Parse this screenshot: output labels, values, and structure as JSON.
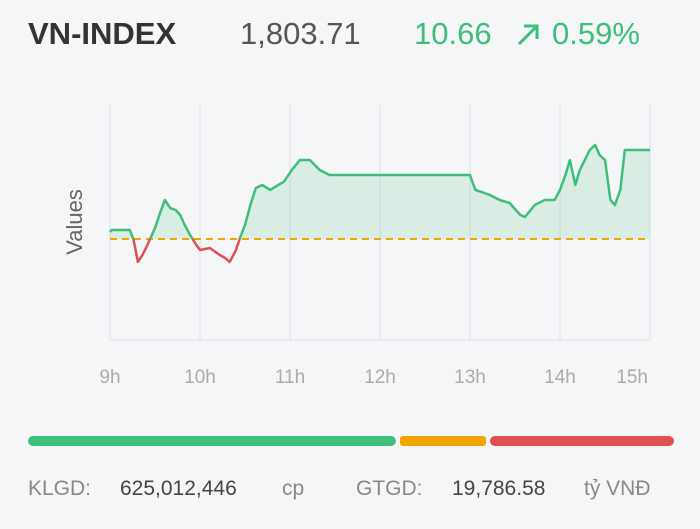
{
  "header": {
    "title": "VN-INDEX",
    "price": "1,803.71",
    "change": "10.66",
    "change_pct": "0.59%"
  },
  "chart_data": {
    "type": "line",
    "y_label": "Values",
    "x": [
      9.0,
      9.02,
      9.22,
      9.26,
      9.31,
      9.36,
      9.4,
      9.44,
      9.5,
      9.56,
      9.61,
      9.67,
      9.73,
      9.78,
      9.83,
      9.89,
      9.96,
      10.0,
      10.11,
      10.22,
      10.28,
      10.33,
      10.4,
      10.44,
      10.5,
      10.56,
      10.62,
      10.69,
      10.78,
      10.87,
      10.93,
      11.02,
      11.11,
      11.22,
      11.33,
      11.44,
      13.0,
      13.06,
      13.22,
      13.33,
      13.44,
      13.56,
      13.61,
      13.72,
      13.83,
      13.94,
      14.0,
      14.06,
      14.11,
      14.17,
      14.22,
      14.33,
      14.39,
      14.44,
      14.5,
      14.56,
      14.61,
      14.67,
      14.72,
      15.0
    ],
    "values": [
      1793.89,
      1794.13,
      1794.13,
      1793.05,
      1790.3,
      1791.13,
      1791.97,
      1792.93,
      1794.37,
      1796.28,
      1797.72,
      1796.76,
      1796.52,
      1795.92,
      1794.73,
      1793.53,
      1792.33,
      1791.73,
      1791.97,
      1791.13,
      1790.77,
      1790.3,
      1791.73,
      1793.05,
      1794.73,
      1797.12,
      1799.16,
      1799.52,
      1798.92,
      1799.52,
      1799.88,
      1801.31,
      1802.51,
      1802.51,
      1801.31,
      1800.71,
      1800.71,
      1798.92,
      1798.32,
      1797.72,
      1797.36,
      1795.92,
      1795.68,
      1797.12,
      1797.72,
      1797.72,
      1798.92,
      1800.71,
      1802.51,
      1799.52,
      1801.31,
      1803.71,
      1804.31,
      1803.11,
      1802.51,
      1797.72,
      1797.12,
      1798.92,
      1803.71,
      1803.71
    ],
    "reference": 1793.05,
    "color_up": "#3dbf7a",
    "color_down": "#e0504f",
    "reference_color": "#f0a500",
    "xlim": [
      9,
      15
    ],
    "ylim": [
      1780.95,
      1809.1
    ],
    "xticks": [
      {
        "value": 9,
        "label": "9h"
      },
      {
        "value": 10,
        "label": "10h"
      },
      {
        "value": 11,
        "label": "11h"
      },
      {
        "value": 12,
        "label": "12h"
      },
      {
        "value": 13,
        "label": "13h"
      },
      {
        "value": 14,
        "label": "14h"
      },
      {
        "value": 15,
        "label": "15h"
      }
    ],
    "grid": true
  },
  "footer": {
    "vol_label": "KLGD:",
    "vol": "625,012,446",
    "vol_unit": "cp",
    "val_label": "GTGD:",
    "val": "19,786.58",
    "val_unit": "tỷ VNĐ"
  }
}
